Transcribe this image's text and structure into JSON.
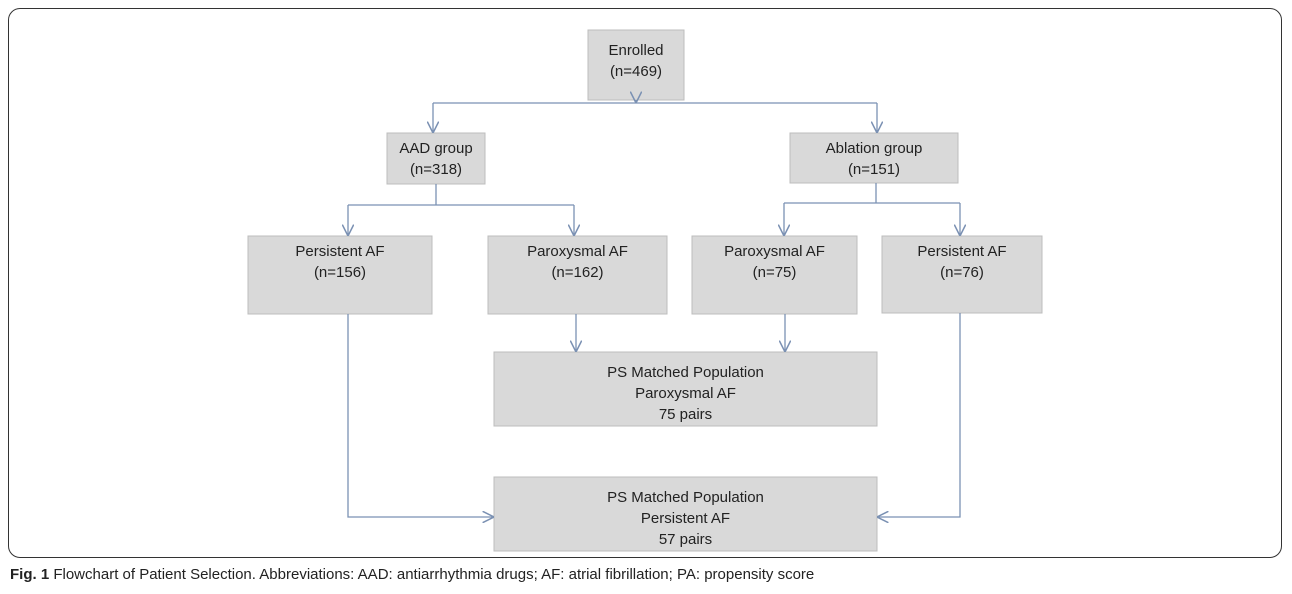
{
  "nodes": [
    {
      "lines": [
        "Enrolled",
        "(n=469)"
      ]
    },
    {
      "lines": [
        "AAD group",
        "(n=318)"
      ]
    },
    {
      "lines": [
        "Ablation group",
        "(n=151)"
      ]
    },
    {
      "lines": [
        "Persistent AF",
        "(n=156)"
      ]
    },
    {
      "lines": [
        "Paroxysmal AF",
        "(n=162)"
      ]
    },
    {
      "lines": [
        "Paroxysmal AF",
        "(n=75)"
      ]
    },
    {
      "lines": [
        "Persistent AF",
        "(n=76)"
      ]
    },
    {
      "lines": [
        "PS Matched Population",
        "Paroxysmal AF",
        "75 pairs"
      ]
    },
    {
      "lines": [
        "PS Matched Population",
        "Persistent AF",
        "57 pairs"
      ]
    }
  ],
  "caption": {
    "label": "Fig. 1",
    "text": "Flowchart of Patient Selection. Abbreviations: AAD: antiarrhythmia drugs; AF: atrial fibrillation; PA: propensity score"
  }
}
